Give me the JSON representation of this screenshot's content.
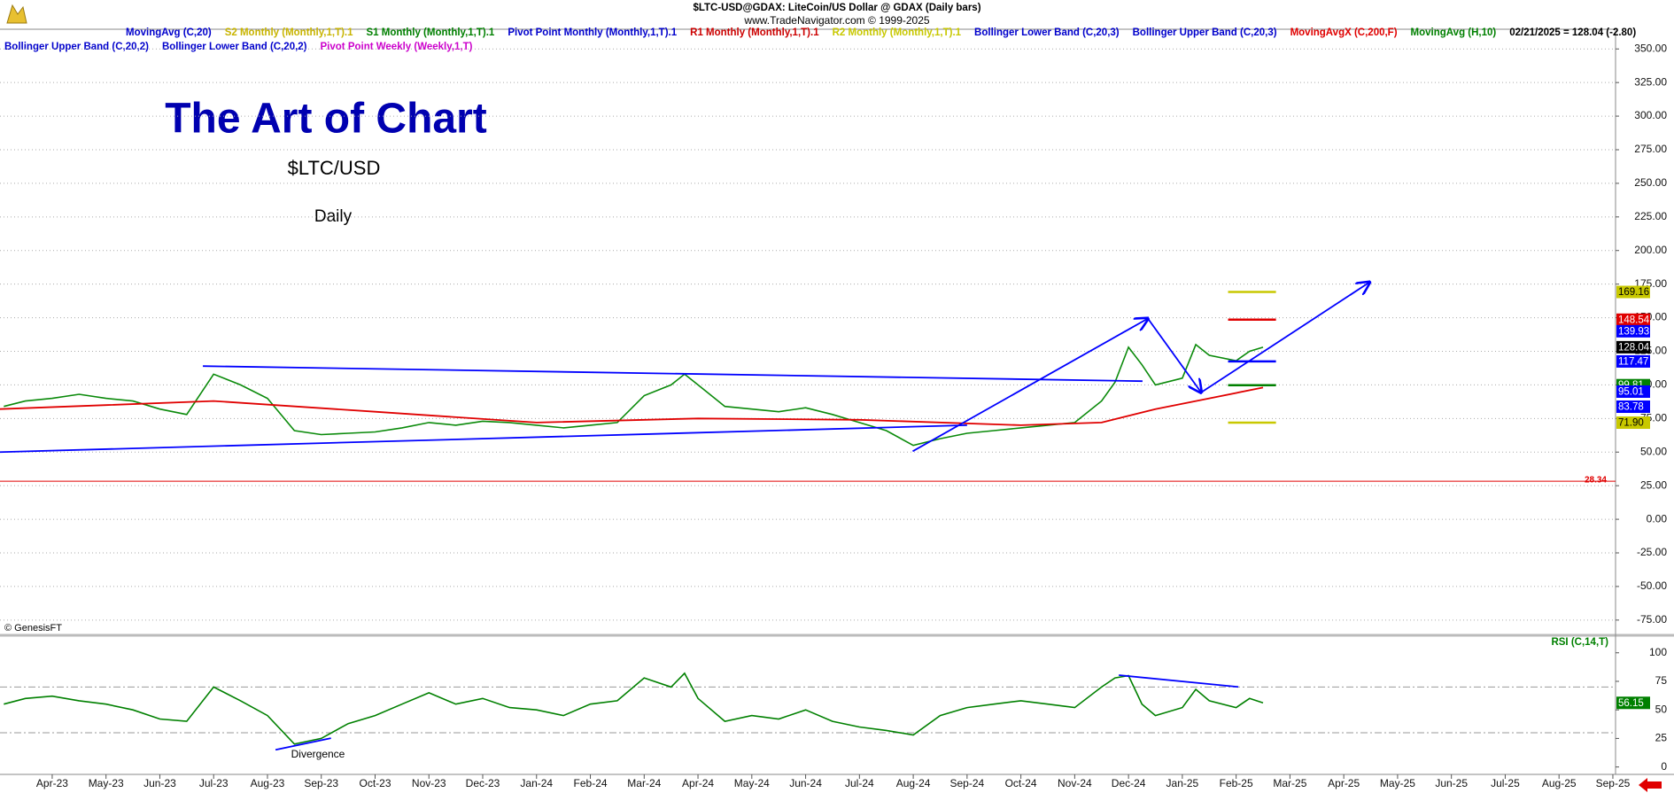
{
  "header": {
    "symbol": "$LTC-USD@GDAX:  LiteCoin/US Dollar @ GDAX  (Daily bars)",
    "site": "www.TradeNavigator.com © 1999-2025",
    "legend": [
      [
        {
          "name": "MovingAvg (C,20)",
          "color": "#0000cc"
        },
        {
          "name": "S2 Monthly (Monthly,1,T).1",
          "color": "#c8b400"
        },
        {
          "name": "S1 Monthly (Monthly,1,T).1",
          "color": "#008000"
        },
        {
          "name": "Pivot Point Monthly (Monthly,1,T).1",
          "color": "#0000cc"
        },
        {
          "name": "R1 Monthly (Monthly,1,T).1",
          "color": "#cc0000"
        },
        {
          "name": "R2 Monthly (Monthly,1,T).1",
          "color": "#c8c800"
        },
        {
          "name": "Bollinger Lower Band (C,20,3)",
          "color": "#0000cc"
        },
        {
          "name": "Bollinger Upper Band (C,20,3)",
          "color": "#0000cc"
        },
        {
          "name": "MovingAvgX (C,200,F)",
          "color": "#e00000"
        },
        {
          "name": "MovingAvg (H,10)",
          "color": "#008000"
        },
        {
          "name": "02/21/2025 = 128.04 (-2.80)",
          "color": "#000000"
        }
      ],
      [
        {
          "name": "Bollinger Upper Band (C,20,2)",
          "color": "#0000cc"
        },
        {
          "name": "Bollinger Lower Band (C,20,2)",
          "color": "#0000cc"
        },
        {
          "name": "Pivot Point Weekly (Weekly,1,T)",
          "color": "#cc00cc"
        }
      ]
    ]
  },
  "chart_data": [
    {
      "type": "line",
      "title": "The Art of Chart",
      "subtitle": "$LTC/USD",
      "annotations": [
        "Daily",
        "© GenesisFT"
      ],
      "x": [
        -0.9,
        -0.5,
        0,
        0.5,
        1,
        1.5,
        2,
        2.5,
        3,
        3.5,
        4,
        4.5,
        5,
        5.5,
        6,
        6.5,
        7,
        7.5,
        8,
        8.5,
        9,
        9.5,
        10,
        10.5,
        11,
        11.5,
        11.75,
        12,
        12.5,
        13,
        13.5,
        14,
        14.5,
        15,
        15.5,
        16,
        16.5,
        17,
        17.5,
        18,
        18.5,
        19,
        19.5,
        19.75,
        20,
        20.25,
        20.5,
        21,
        21.25,
        21.5,
        22,
        22.25,
        22.5
      ],
      "series": [
        {
          "color": "#0a8a0a",
          "values": [
            84,
            88,
            90,
            93,
            90,
            88,
            82,
            78,
            108,
            100,
            90,
            66,
            63,
            64,
            65,
            68,
            72,
            70,
            73,
            72,
            70,
            68,
            70,
            72,
            92,
            100,
            108,
            100,
            84,
            82,
            80,
            83,
            78,
            72,
            66,
            55,
            60,
            64,
            66,
            68,
            70,
            72,
            88,
            102,
            128,
            115,
            100,
            105,
            130,
            122,
            118,
            125,
            128.04
          ]
        },
        {
          "color": "#e00000",
          "x": [
            -0.97,
            1,
            3,
            6,
            9,
            12,
            15,
            18,
            19.5,
            20.5,
            21.5,
            22.5
          ],
          "values": [
            82,
            85,
            88,
            80,
            72,
            75,
            74,
            70,
            72,
            82,
            90,
            98
          ]
        }
      ],
      "xlim": [
        -0.97,
        29.05
      ],
      "xticks": [
        {
          "value": 0,
          "label": "Apr-23"
        },
        {
          "value": 1,
          "label": "May-23"
        },
        {
          "value": 2,
          "label": "Jun-23"
        },
        {
          "value": 3,
          "label": "Jul-23"
        },
        {
          "value": 4,
          "label": "Aug-23"
        },
        {
          "value": 5,
          "label": "Sep-23"
        },
        {
          "value": 6,
          "label": "Oct-23"
        },
        {
          "value": 7,
          "label": "Nov-23"
        },
        {
          "value": 8,
          "label": "Dec-23"
        },
        {
          "value": 9,
          "label": "Jan-24"
        },
        {
          "value": 10,
          "label": "Feb-24"
        },
        {
          "value": 11,
          "label": "Mar-24"
        },
        {
          "value": 12,
          "label": "Apr-24"
        },
        {
          "value": 13,
          "label": "May-24"
        },
        {
          "value": 14,
          "label": "Jun-24"
        },
        {
          "value": 15,
          "label": "Jul-24"
        },
        {
          "value": 16,
          "label": "Aug-24"
        },
        {
          "value": 17,
          "label": "Sep-24"
        },
        {
          "value": 18,
          "label": "Oct-24"
        },
        {
          "value": 19,
          "label": "Nov-24"
        },
        {
          "value": 20,
          "label": "Dec-24"
        },
        {
          "value": 21,
          "label": "Jan-25"
        },
        {
          "value": 22,
          "label": "Feb-25"
        },
        {
          "value": 23,
          "label": "Mar-25"
        },
        {
          "value": 24,
          "label": "Apr-25"
        },
        {
          "value": 25,
          "label": "May-25"
        },
        {
          "value": 26,
          "label": "Jun-25"
        },
        {
          "value": 27,
          "label": "Jul-25"
        },
        {
          "value": 28,
          "label": "Aug-25"
        },
        {
          "value": 29,
          "label": "Sep-25"
        }
      ],
      "ylim": [
        -85,
        364
      ],
      "yticks": [
        {
          "value": 350,
          "label": "350.00"
        },
        {
          "value": 325,
          "label": "325.00"
        },
        {
          "value": 300,
          "label": "300.00"
        },
        {
          "value": 275,
          "label": "275.00"
        },
        {
          "value": 250,
          "label": "250.00"
        },
        {
          "value": 225,
          "label": "225.00"
        },
        {
          "value": 200,
          "label": "200.00"
        },
        {
          "value": 175,
          "label": "175.00"
        },
        {
          "value": 150,
          "label": "150.00"
        },
        {
          "value": 125,
          "label": "125.00"
        },
        {
          "value": 100,
          "label": "100.00"
        },
        {
          "value": 75,
          "label": "75.00"
        },
        {
          "value": 50,
          "label": "50.00"
        },
        {
          "value": 25,
          "label": "25.00"
        },
        {
          "value": 0,
          "label": "0.00"
        },
        {
          "value": -25,
          "label": "-25.00"
        },
        {
          "value": -50,
          "label": "-50.00"
        },
        {
          "value": -75,
          "label": "-75.00"
        }
      ],
      "grid": true,
      "hline": {
        "value": 28.34,
        "color": "#e00000"
      },
      "trend_lines": [
        {
          "x": [
            2.8,
            20.26
          ],
          "y": [
            114,
            102.8
          ],
          "color": "#0000ff",
          "arrow": false
        },
        {
          "x": [
            -0.97,
            17.0
          ],
          "y": [
            50,
            70
          ],
          "color": "#0000ff",
          "arrow": false
        },
        {
          "x": [
            15.99,
            20.36
          ],
          "y": [
            50.6,
            149.4
          ],
          "color": "#0000ff",
          "arrow": true
        },
        {
          "x": [
            20.36,
            21.35
          ],
          "y": [
            149.4,
            94.4
          ],
          "color": "#0000ff",
          "arrow": true
        },
        {
          "x": [
            21.35,
            24.48
          ],
          "y": [
            94.4,
            176.4
          ],
          "color": "#0000ff",
          "arrow": true
        }
      ],
      "pivot_lines": [
        {
          "x": [
            21.85,
            22.74
          ],
          "y": 169.16,
          "color": "#c8c800"
        },
        {
          "x": [
            21.85,
            22.74
          ],
          "y": 148.54,
          "color": "#e00000"
        },
        {
          "x": [
            21.85,
            22.74
          ],
          "y": 117.47,
          "color": "#0000ff"
        },
        {
          "x": [
            21.85,
            22.74
          ],
          "y": 99.81,
          "color": "#008000"
        },
        {
          "x": [
            21.85,
            22.74
          ],
          "y": 71.9,
          "color": "#c8c800"
        }
      ],
      "price_labels": [
        {
          "value": 169.16,
          "color": "#c8c800"
        },
        {
          "value": 148.54,
          "color": "#e00000"
        },
        {
          "value": 139.93,
          "color": "#0000ff"
        },
        {
          "value": 128.04,
          "color": "#000000"
        },
        {
          "value": 117.47,
          "color": "#0000ff"
        },
        {
          "value": 99.81,
          "color": "#008000"
        },
        {
          "value": 95.01,
          "color": "#0000ff"
        },
        {
          "value": 83.78,
          "color": "#0000ff"
        },
        {
          "value": 71.9,
          "label": "71.90",
          "color": "#c8c800"
        }
      ]
    },
    {
      "type": "line",
      "title": "RSI (C,14,T)",
      "annotation": "Divergence",
      "x": [
        -0.9,
        -0.5,
        0,
        0.5,
        1,
        1.5,
        2,
        2.5,
        3,
        3.5,
        4,
        4.5,
        5,
        5.5,
        6,
        6.5,
        7,
        7.5,
        8,
        8.5,
        9,
        9.5,
        10,
        10.5,
        11,
        11.5,
        11.75,
        12,
        12.5,
        13,
        13.5,
        14,
        14.5,
        15,
        15.5,
        16,
        16.5,
        17,
        17.5,
        18,
        18.5,
        19,
        19.5,
        19.75,
        20,
        20.25,
        20.5,
        21,
        21.25,
        21.5,
        22,
        22.25,
        22.5
      ],
      "series": [
        {
          "color": "#008000",
          "values": [
            55,
            60,
            62,
            58,
            55,
            50,
            42,
            40,
            70,
            58,
            45,
            20,
            25,
            38,
            45,
            55,
            65,
            55,
            60,
            52,
            50,
            45,
            55,
            58,
            78,
            70,
            82,
            60,
            40,
            45,
            42,
            50,
            40,
            35,
            32,
            28,
            45,
            52,
            55,
            58,
            55,
            52,
            70,
            78,
            80,
            55,
            45,
            52,
            68,
            58,
            52,
            60,
            56.15
          ]
        }
      ],
      "xlim": [
        -0.97,
        29.05
      ],
      "ylim": [
        -6.5,
        113
      ],
      "yticks": [
        0,
        25,
        50,
        75,
        100
      ],
      "ref_lines": [
        70,
        30
      ],
      "trend_lines": [
        {
          "x": [
            4.15,
            5.18
          ],
          "y": [
            15,
            25.2
          ],
          "color": "#0000ff",
          "arrow": false
        },
        {
          "x": [
            19.82,
            22.04
          ],
          "y": [
            80.4,
            70.1
          ],
          "color": "#0000ff",
          "arrow": false
        }
      ],
      "price_labels": [
        {
          "value": 56.15,
          "color": "#008000"
        }
      ]
    }
  ]
}
